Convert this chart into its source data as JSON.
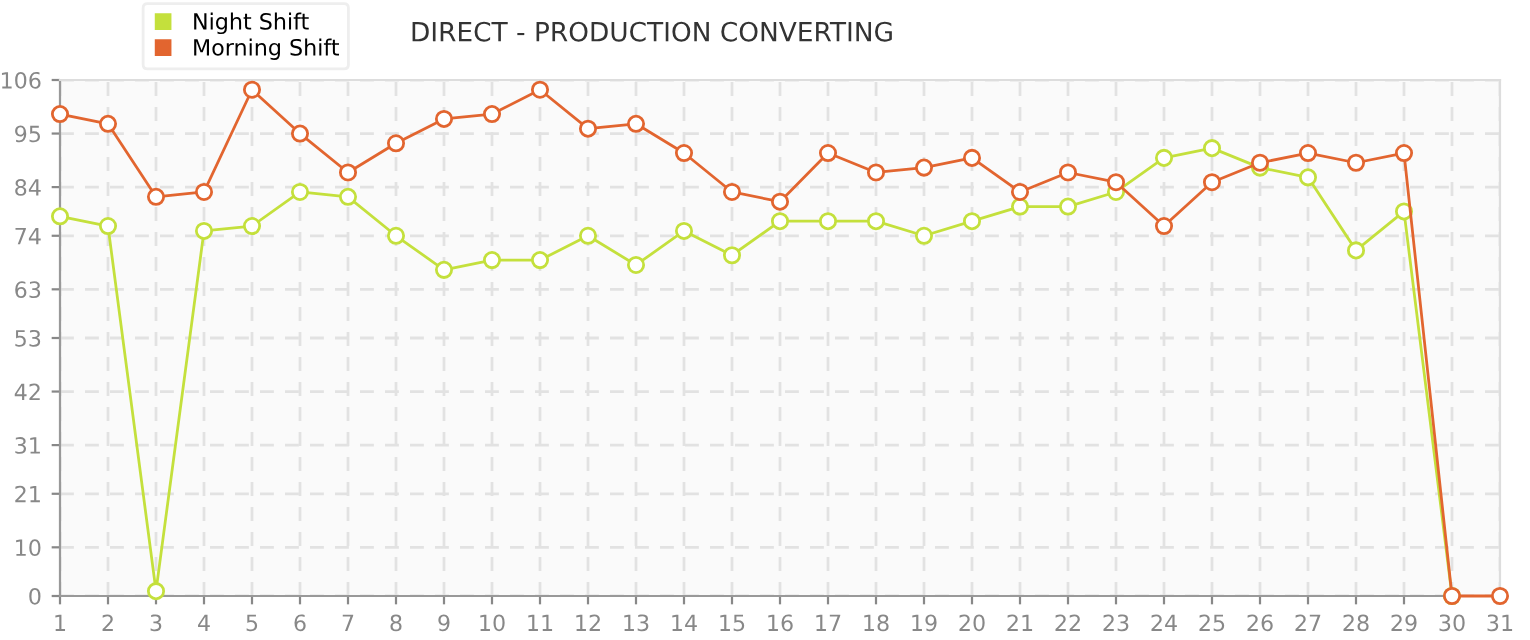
{
  "chart_data": {
    "type": "line",
    "title": "DIRECT - PRODUCTION CONVERTING",
    "x": [
      1,
      2,
      3,
      4,
      5,
      6,
      7,
      8,
      9,
      10,
      11,
      12,
      13,
      14,
      15,
      16,
      17,
      18,
      19,
      20,
      21,
      22,
      23,
      24,
      25,
      26,
      27,
      28,
      29,
      30,
      31
    ],
    "series": [
      {
        "name": "Night Shift",
        "color": "#c4e03c",
        "values": [
          78,
          76,
          1,
          75,
          76,
          83,
          82,
          74,
          67,
          69,
          69,
          74,
          68,
          75,
          70,
          77,
          77,
          77,
          74,
          77,
          80,
          80,
          83,
          90,
          92,
          88,
          86,
          71,
          79,
          0,
          null
        ]
      },
      {
        "name": "Morning Shift",
        "color": "#e2652f",
        "values": [
          99,
          97,
          82,
          83,
          104,
          95,
          87,
          93,
          98,
          99,
          104,
          96,
          97,
          91,
          83,
          81,
          91,
          87,
          88,
          90,
          83,
          87,
          85,
          76,
          85,
          89,
          91,
          89,
          91,
          0,
          0
        ]
      }
    ],
    "xlim": [
      1,
      31
    ],
    "xticks": [
      1,
      2,
      3,
      4,
      5,
      6,
      7,
      8,
      9,
      10,
      11,
      12,
      13,
      14,
      15,
      16,
      17,
      18,
      19,
      20,
      21,
      22,
      23,
      24,
      25,
      26,
      27,
      28,
      29,
      30,
      31
    ],
    "ylim": [
      0,
      106
    ],
    "yticks": [
      0,
      10,
      21,
      31,
      42,
      53,
      63,
      74,
      84,
      95,
      106
    ],
    "grid": true,
    "legend": "top left",
    "marker": "circle",
    "line_style": "solid"
  }
}
